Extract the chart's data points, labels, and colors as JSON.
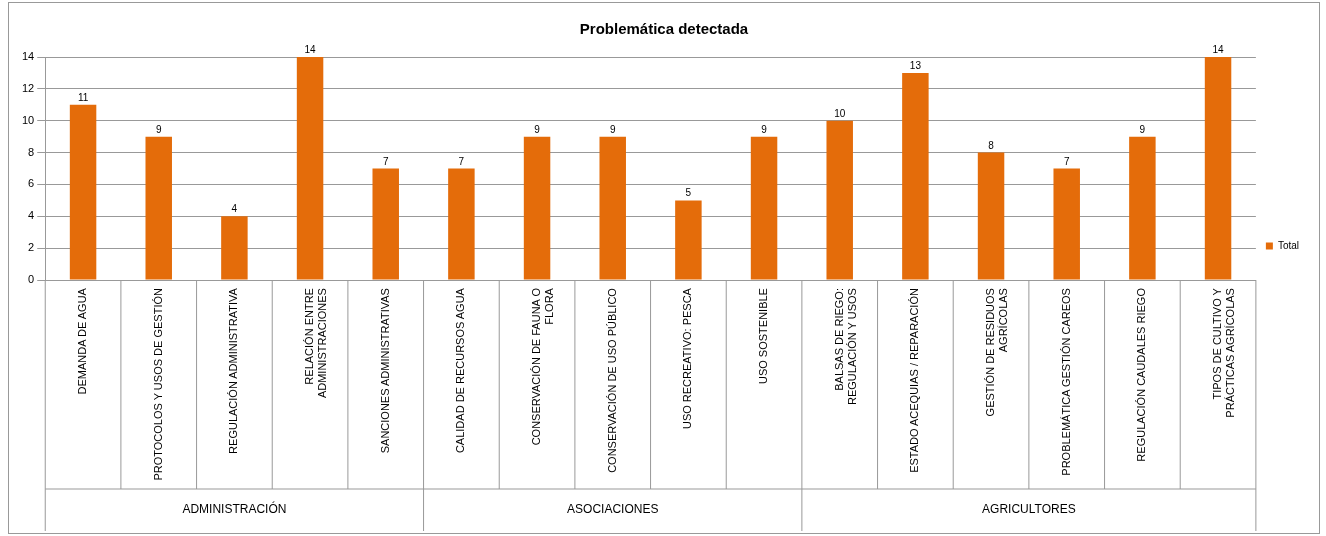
{
  "chart_data": {
    "type": "bar",
    "title": "Problemática detectada",
    "categories": [
      "DEMANDA DE AGUA",
      "PROTOCOLOS Y USOS DE GESTIÓN",
      "REGULACIÓN ADMINISTRATIVA",
      "RELACIÓN ENTRE ADMINISTRACIONES",
      "SANCIONES ADMINISTRATIVAS",
      "CALIDAD DE RECURSOS AGUA",
      "CONSERVACIÓN DE FAUNA O FLORA",
      "CONSERVACIÓN DE USO PÚBLICO",
      "USO RECREATIVO: PESCA",
      "USO SOSTENIBLE",
      "BALSAS DE RIEGO: REGULACIÓN Y USOS",
      "ESTADO ACEQUIAS / REPARACIÓN",
      "GESTIÓN DE RESIDUOS AGRÍCOLAS",
      "PROBLEMÁTICA GESTIÓN CAREOS",
      "REGULACIÓN CAUDALES RIEGO",
      "TIPOS DE CULTIVO Y PRÁCTICAS AGRÍCOLAS"
    ],
    "series": [
      {
        "name": "Total",
        "color": "#e46c0a",
        "values": [
          11,
          9,
          4,
          14,
          7,
          7,
          9,
          9,
          5,
          9,
          10,
          13,
          8,
          7,
          9,
          14
        ]
      }
    ],
    "ylim": [
      0,
      14
    ],
    "yticks": [
      0,
      2,
      4,
      6,
      8,
      10,
      12,
      14
    ],
    "grid": "y",
    "legend": "right",
    "data_labels": true,
    "annotations": [
      "ADMINISTRACIÓN",
      "ASOCIACIONES",
      "AGRICULTORES"
    ]
  }
}
